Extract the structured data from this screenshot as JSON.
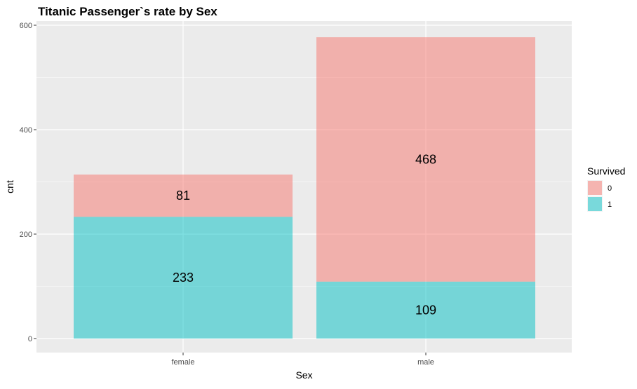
{
  "chart_data": {
    "type": "bar",
    "stacked": true,
    "title": "Titanic Passenger`s rate by Sex",
    "xlabel": "Sex",
    "ylabel": "cnt",
    "categories": [
      "female",
      "male"
    ],
    "ylim": [
      0,
      600
    ],
    "yticks": [
      0,
      200,
      400,
      600
    ],
    "grid": true,
    "legend": {
      "title": "Survived",
      "position": "right"
    },
    "series": [
      {
        "name": "0",
        "color": "#F8766D",
        "values": [
          81,
          468
        ],
        "labels": [
          "81",
          "468"
        ]
      },
      {
        "name": "1",
        "color": "#00BFC4",
        "values": [
          233,
          109
        ],
        "labels": [
          "233",
          "109"
        ]
      }
    ]
  }
}
